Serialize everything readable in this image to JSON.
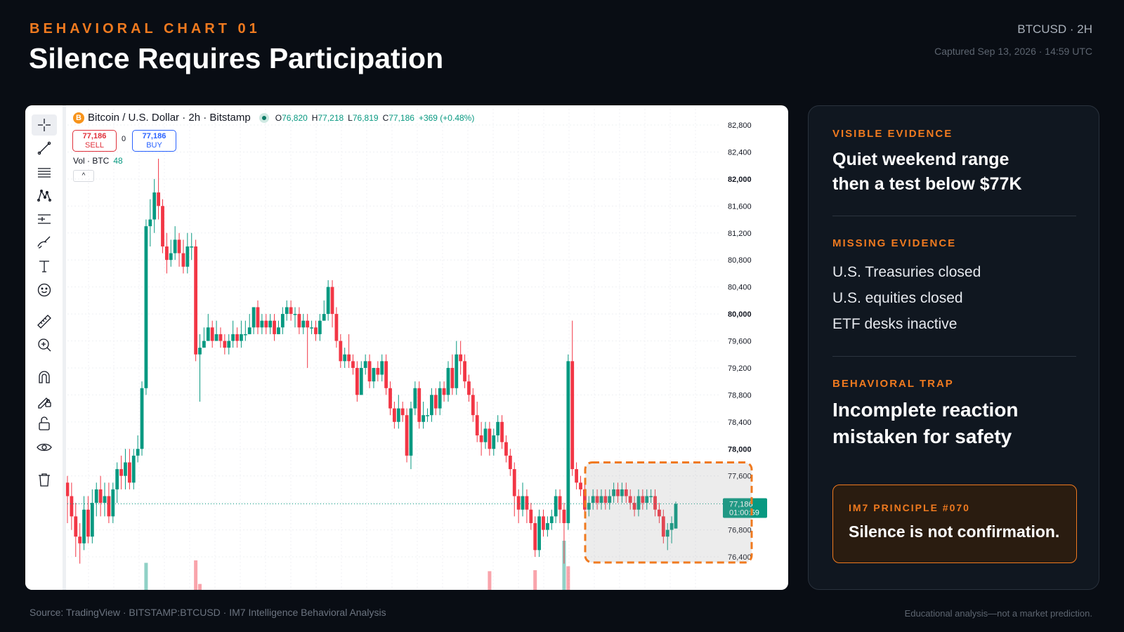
{
  "header": {
    "kicker": "BEHAVIORAL CHART 01",
    "title": "Silence Requires Participation",
    "ticker": "BTCUSD · 2H",
    "captured": "Captured Sep 13, 2026 · 14:59 UTC"
  },
  "chart": {
    "symbol_title": "Bitcoin / U.S. Dollar · 2h · Bitstamp",
    "coin_glyph": "B",
    "ohlc": {
      "o_label": "O",
      "o": "76,820",
      "h_label": "H",
      "h": "77,218",
      "l_label": "L",
      "l": "76,819",
      "c_label": "C",
      "c": "77,186",
      "change": "+369 (+0.48%)"
    },
    "sell": {
      "price": "77,186",
      "label": "SELL"
    },
    "buy": {
      "price": "77,186",
      "label": "BUY"
    },
    "spread": "0",
    "volume": {
      "label": "Vol · BTC",
      "value": "48"
    },
    "collapse_glyph": "^",
    "current_price_tag": {
      "price": "77,186",
      "countdown": "01:00:59"
    },
    "colors": {
      "up": "#089981",
      "down": "#f23645",
      "highlight": "#f07a1f"
    },
    "toolbar_icons": [
      "crosshair-icon",
      "trend-line-icon",
      "horizontal-lines-icon",
      "pattern-icon",
      "prediction-icon",
      "brush-icon",
      "text-icon",
      "emoji-icon",
      "ruler-icon",
      "zoom-in-icon",
      "magnet-icon",
      "lock-drawings-icon",
      "unlock-icon",
      "eye-icon",
      "trash-icon"
    ]
  },
  "chart_data": {
    "type": "candlestick",
    "y_tick_labels": [
      "82,800",
      "82,400",
      "82,000",
      "81,600",
      "81,200",
      "80,800",
      "80,400",
      "80,000",
      "79,600",
      "79,200",
      "78,800",
      "78,400",
      "78,000",
      "77,600",
      "77,200",
      "76,800",
      "76,400"
    ],
    "bold_ticks": [
      "82,000",
      "80,000",
      "78,000"
    ],
    "ylim": [
      76300,
      82900
    ],
    "current_price": 77186,
    "highlight_zone": {
      "price_from": 76400,
      "price_to": 77800,
      "label": ""
    },
    "candles": [
      [
        77500,
        77300,
        77600,
        76900
      ],
      [
        77300,
        77000,
        77500,
        76800
      ],
      [
        77000,
        76700,
        77200,
        76400
      ],
      [
        76700,
        76600,
        76900,
        76300
      ],
      [
        76600,
        77100,
        77300,
        76500
      ],
      [
        77100,
        76700,
        77300,
        76600
      ],
      [
        76700,
        77200,
        77400,
        76600
      ],
      [
        77200,
        77400,
        77500,
        77000
      ],
      [
        77400,
        77200,
        77600,
        77000
      ],
      [
        77200,
        77300,
        77500,
        77000
      ],
      [
        77300,
        77000,
        77500,
        76900
      ],
      [
        77000,
        77400,
        77500,
        76900
      ],
      [
        77400,
        77700,
        77800,
        77200
      ],
      [
        77700,
        77600,
        77900,
        77400
      ],
      [
        77600,
        77800,
        78000,
        77400
      ],
      [
        77800,
        77500,
        78000,
        77400
      ],
      [
        77500,
        77900,
        78000,
        77400
      ],
      [
        77900,
        78000,
        78200,
        77800
      ],
      [
        78000,
        78900,
        79000,
        77900
      ],
      [
        78900,
        81300,
        81400,
        78800
      ],
      [
        81300,
        81400,
        81700,
        81000
      ],
      [
        81400,
        81800,
        82000,
        81200
      ],
      [
        81800,
        81600,
        82300,
        81400
      ],
      [
        81600,
        81000,
        81700,
        80900
      ],
      [
        81000,
        80800,
        81200,
        80600
      ],
      [
        80800,
        80900,
        81100,
        80700
      ],
      [
        80900,
        81100,
        81300,
        80800
      ],
      [
        81100,
        80900,
        81200,
        80700
      ],
      [
        80900,
        80700,
        81100,
        80600
      ],
      [
        80700,
        81000,
        81200,
        80600
      ],
      [
        81000,
        81000,
        81200,
        80800
      ],
      [
        81000,
        79400,
        81100,
        79300
      ],
      [
        79400,
        79500,
        79700,
        78700
      ],
      [
        79500,
        79600,
        79800,
        79500
      ],
      [
        79600,
        79800,
        80000,
        79600
      ],
      [
        79800,
        79600,
        79900,
        79500
      ],
      [
        79600,
        79700,
        79900,
        79600
      ],
      [
        79700,
        79600,
        79800,
        79500
      ],
      [
        79600,
        79500,
        79700,
        79400
      ],
      [
        79500,
        79600,
        79700,
        79400
      ],
      [
        79600,
        79700,
        79900,
        79500
      ],
      [
        79700,
        79600,
        79800,
        79500
      ],
      [
        79600,
        79700,
        79900,
        79500
      ],
      [
        79700,
        79700,
        79900,
        79600
      ],
      [
        79700,
        79800,
        80000,
        79700
      ],
      [
        79800,
        80100,
        80100,
        79700
      ],
      [
        80100,
        79800,
        80200,
        79700
      ],
      [
        79800,
        79900,
        80000,
        79700
      ],
      [
        79900,
        79800,
        80000,
        79700
      ],
      [
        79800,
        79900,
        80000,
        79700
      ],
      [
        79900,
        79700,
        80000,
        79600
      ],
      [
        79700,
        79800,
        79900,
        79700
      ],
      [
        79800,
        80000,
        80100,
        79700
      ],
      [
        80000,
        80100,
        80200,
        79900
      ],
      [
        80100,
        80000,
        80200,
        79900
      ],
      [
        80000,
        80000,
        80100,
        79800
      ],
      [
        80000,
        79800,
        80100,
        79700
      ],
      [
        79800,
        79900,
        80000,
        79700
      ],
      [
        79900,
        79800,
        80000,
        79200
      ],
      [
        79800,
        79800,
        79900,
        79700
      ],
      [
        79800,
        79700,
        79900,
        79600
      ],
      [
        79700,
        79900,
        80000,
        79600
      ],
      [
        79900,
        80000,
        80200,
        79900
      ],
      [
        80000,
        80400,
        80500,
        79900
      ],
      [
        80400,
        80000,
        80500,
        79800
      ],
      [
        80000,
        79600,
        80100,
        79500
      ],
      [
        79600,
        79300,
        79700,
        79200
      ],
      [
        79300,
        79400,
        79500,
        79200
      ],
      [
        79400,
        79300,
        79700,
        79200
      ],
      [
        79300,
        79200,
        79400,
        79100
      ],
      [
        79200,
        78800,
        79300,
        78700
      ],
      [
        78800,
        79200,
        79300,
        78800
      ],
      [
        79200,
        79300,
        79400,
        79100
      ],
      [
        79300,
        79000,
        79400,
        78900
      ],
      [
        79000,
        79200,
        79200,
        78900
      ],
      [
        79200,
        79100,
        79300,
        79000
      ],
      [
        79100,
        79300,
        79400,
        79000
      ],
      [
        79300,
        78900,
        79400,
        78800
      ],
      [
        78900,
        78600,
        79000,
        78500
      ],
      [
        78600,
        78400,
        78700,
        78300
      ],
      [
        78400,
        78600,
        78800,
        78300
      ],
      [
        78600,
        78500,
        78700,
        78400
      ],
      [
        78500,
        77900,
        78600,
        77800
      ],
      [
        77900,
        78600,
        78700,
        77700
      ],
      [
        78600,
        78900,
        79000,
        78500
      ],
      [
        78900,
        78400,
        79000,
        78300
      ],
      [
        78400,
        78500,
        78700,
        78300
      ],
      [
        78500,
        78500,
        78600,
        78400
      ],
      [
        78500,
        78800,
        78900,
        78400
      ],
      [
        78800,
        78600,
        78900,
        78500
      ],
      [
        78600,
        78900,
        79000,
        78500
      ],
      [
        78900,
        78800,
        79000,
        78700
      ],
      [
        78800,
        79200,
        79300,
        78700
      ],
      [
        79200,
        78900,
        79400,
        78800
      ],
      [
        78900,
        79400,
        79600,
        78800
      ],
      [
        79400,
        79300,
        79600,
        79100
      ],
      [
        79300,
        79000,
        79400,
        78900
      ],
      [
        79000,
        78800,
        79100,
        78700
      ],
      [
        78800,
        78500,
        78900,
        78400
      ],
      [
        78500,
        78200,
        78700,
        78100
      ],
      [
        78200,
        78100,
        78400,
        77900
      ],
      [
        78100,
        78300,
        78400,
        78000
      ],
      [
        78300,
        78000,
        78400,
        77900
      ],
      [
        78000,
        78200,
        78300,
        77900
      ],
      [
        78200,
        78400,
        78500,
        78100
      ],
      [
        78400,
        78100,
        78500,
        78000
      ],
      [
        78100,
        77900,
        78200,
        77800
      ],
      [
        77900,
        77700,
        78000,
        77600
      ],
      [
        77700,
        77300,
        77800,
        77000
      ],
      [
        77300,
        77100,
        77400,
        76900
      ],
      [
        77100,
        77300,
        77500,
        77000
      ],
      [
        77300,
        77100,
        77400,
        76900
      ],
      [
        77100,
        76900,
        77200,
        76800
      ],
      [
        76900,
        76500,
        77000,
        76400
      ],
      [
        76500,
        77000,
        77100,
        76400
      ],
      [
        77000,
        76800,
        77100,
        76700
      ],
      [
        76800,
        76900,
        77000,
        76700
      ],
      [
        76900,
        77000,
        77100,
        76800
      ],
      [
        77000,
        77300,
        77400,
        76900
      ],
      [
        77300,
        77100,
        77400,
        76900
      ],
      [
        77100,
        76900,
        77200,
        76300
      ],
      [
        76900,
        79300,
        79400,
        76800
      ],
      [
        79300,
        77700,
        79900,
        77600
      ],
      [
        77700,
        77500,
        77800,
        77400
      ],
      [
        77500,
        77400,
        77600,
        77300
      ],
      [
        77400,
        77100,
        77500,
        77000
      ],
      [
        77100,
        77200,
        77300,
        77000
      ],
      [
        77200,
        77300,
        77400,
        77100
      ],
      [
        77300,
        77200,
        77400,
        77100
      ],
      [
        77200,
        77300,
        77400,
        77100
      ],
      [
        77300,
        77200,
        77400,
        77100
      ],
      [
        77200,
        77300,
        77400,
        77100
      ],
      [
        77300,
        77400,
        77500,
        77200
      ],
      [
        77400,
        77300,
        77500,
        77200
      ],
      [
        77300,
        77400,
        77500,
        77200
      ],
      [
        77400,
        77300,
        77500,
        77200
      ],
      [
        77300,
        77200,
        77400,
        77100
      ],
      [
        77200,
        77100,
        77300,
        77000
      ],
      [
        77100,
        77300,
        77400,
        77000
      ],
      [
        77300,
        77200,
        77400,
        77100
      ],
      [
        77200,
        77300,
        77400,
        77100
      ],
      [
        77300,
        77300,
        77400,
        77200
      ],
      [
        77300,
        77100,
        77400,
        77000
      ],
      [
        77100,
        77000,
        77200,
        76900
      ],
      [
        77000,
        76700,
        77100,
        76600
      ],
      [
        76700,
        76800,
        76900,
        76500
      ],
      [
        76800,
        76900,
        77000,
        76600
      ],
      [
        76820,
        77186,
        77218,
        76819
      ]
    ],
    "volume_bars": [
      {
        "index": 19,
        "value": 55,
        "dir": "up"
      },
      {
        "index": 31,
        "value": 60,
        "dir": "down"
      },
      {
        "index": 32,
        "value": 12,
        "dir": "down"
      },
      {
        "index": 102,
        "value": 38,
        "dir": "down"
      },
      {
        "index": 113,
        "value": 40,
        "dir": "down"
      },
      {
        "index": 120,
        "value": 100,
        "dir": "up"
      },
      {
        "index": 121,
        "value": 48,
        "dir": "down"
      }
    ]
  },
  "panel": {
    "visible": {
      "label": "VISIBLE EVIDENCE",
      "line1": "Quiet weekend range",
      "line2": "then a test below $77K"
    },
    "missing": {
      "label": "MISSING EVIDENCE",
      "items": [
        "U.S. Treasuries closed",
        "U.S. equities closed",
        "ETF desks inactive"
      ]
    },
    "trap": {
      "label": "BEHAVIORAL TRAP",
      "line1": "Incomplete reaction",
      "line2": "mistaken for safety"
    },
    "principle": {
      "label": "IM7 PRINCIPLE #070",
      "text": "Silence is not confirmation."
    }
  },
  "footer": {
    "source": "Source: TradingView · BITSTAMP:BTCUSD · IM7 Intelligence Behavioral Analysis",
    "disclaimer": "Educational analysis—not a market prediction."
  }
}
